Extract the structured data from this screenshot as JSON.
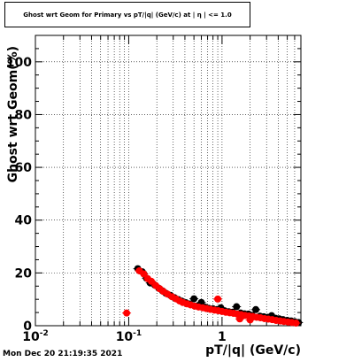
{
  "title": "Ghost wrt Geom for Primary vs pT/|q| (GeV/c) at | η | <= 1.0",
  "footer": "Mon Dec 20 21:19:35 2021",
  "chart_data": {
    "type": "scatter",
    "title": "Ghost wrt Geom for Primary vs pT/|q| (GeV/c) at | η | <= 1.0",
    "xlabel": "pT/|q| (GeV/c)",
    "ylabel": "Ghost wrt Geom(%)",
    "xscale": "log",
    "xlim": [
      0.01,
      7
    ],
    "ylim": [
      0,
      110
    ],
    "grid": true,
    "x_ticks": [
      {
        "value": 0.01,
        "label": "10",
        "exp": "-2"
      },
      {
        "value": 0.1,
        "label": "10",
        "exp": "-1"
      },
      {
        "value": 1,
        "label": "1",
        "exp": ""
      }
    ],
    "y_ticks": [
      {
        "value": 0,
        "label": "0"
      },
      {
        "value": 20,
        "label": "20"
      },
      {
        "value": 40,
        "label": "40"
      },
      {
        "value": 60,
        "label": "60"
      },
      {
        "value": 80,
        "label": "80"
      },
      {
        "value": 100,
        "label": "100"
      }
    ],
    "series": [
      {
        "color": "#000000",
        "points": [
          [
            0.125,
            21.6
          ],
          [
            0.14,
            20.4
          ],
          [
            0.155,
            18.0
          ],
          [
            0.17,
            16.2
          ],
          [
            0.19,
            15.4
          ],
          [
            0.21,
            14.2
          ],
          [
            0.23,
            13.2
          ],
          [
            0.25,
            12.3
          ],
          [
            0.28,
            11.5
          ],
          [
            0.31,
            10.6
          ],
          [
            0.34,
            9.9
          ],
          [
            0.37,
            9.3
          ],
          [
            0.41,
            8.7
          ],
          [
            0.45,
            8.2
          ],
          [
            0.5,
            10.2
          ],
          [
            0.55,
            7.5
          ],
          [
            0.6,
            8.8
          ],
          [
            0.66,
            7.0
          ],
          [
            0.72,
            6.6
          ],
          [
            0.8,
            6.4
          ],
          [
            0.88,
            6.1
          ],
          [
            0.97,
            6.8
          ],
          [
            1.07,
            5.6
          ],
          [
            1.18,
            5.3
          ],
          [
            1.3,
            5.1
          ],
          [
            1.43,
            7.2
          ],
          [
            1.58,
            4.8
          ],
          [
            1.74,
            4.5
          ],
          [
            1.92,
            4.4
          ],
          [
            2.1,
            3.9
          ],
          [
            2.3,
            6.1
          ],
          [
            2.55,
            3.6
          ],
          [
            2.8,
            3.4
          ],
          [
            3.1,
            3.2
          ],
          [
            3.4,
            3.8
          ],
          [
            3.75,
            2.8
          ],
          [
            4.1,
            2.6
          ],
          [
            4.5,
            2.3
          ],
          [
            5.0,
            2.0
          ],
          [
            5.5,
            1.8
          ],
          [
            6.0,
            1.5
          ],
          [
            6.6,
            1.2
          ]
        ]
      },
      {
        "color": "#ff0000",
        "points": [
          [
            0.095,
            4.8
          ],
          [
            0.13,
            20.8
          ],
          [
            0.145,
            19.6
          ],
          [
            0.16,
            17.8
          ],
          [
            0.175,
            16.8
          ],
          [
            0.195,
            15.2
          ],
          [
            0.215,
            14.0
          ],
          [
            0.235,
            13.0
          ],
          [
            0.26,
            12.0
          ],
          [
            0.29,
            11.0
          ],
          [
            0.32,
            10.2
          ],
          [
            0.35,
            9.4
          ],
          [
            0.38,
            8.8
          ],
          [
            0.42,
            8.3
          ],
          [
            0.46,
            7.9
          ],
          [
            0.51,
            7.4
          ],
          [
            0.56,
            7.1
          ],
          [
            0.62,
            6.8
          ],
          [
            0.68,
            6.5
          ],
          [
            0.75,
            6.2
          ],
          [
            0.83,
            5.9
          ],
          [
            0.91,
            5.7
          ],
          [
            1.0,
            5.4
          ],
          [
            1.1,
            5.1
          ],
          [
            1.21,
            4.9
          ],
          [
            1.33,
            4.7
          ],
          [
            1.46,
            4.4
          ],
          [
            1.6,
            4.2
          ],
          [
            1.76,
            3.9
          ],
          [
            1.94,
            3.7
          ],
          [
            2.13,
            3.5
          ],
          [
            2.35,
            3.2
          ],
          [
            2.58,
            3.0
          ],
          [
            2.85,
            2.7
          ],
          [
            3.13,
            2.5
          ],
          [
            3.45,
            2.3
          ],
          [
            3.8,
            2.0
          ],
          [
            4.2,
            1.8
          ],
          [
            4.6,
            1.6
          ],
          [
            5.1,
            1.4
          ],
          [
            5.6,
            1.2
          ],
          [
            6.2,
            1.0
          ],
          [
            1.55,
            2.6
          ],
          [
            0.9,
            10.1
          ],
          [
            2.0,
            2.2
          ]
        ]
      }
    ]
  }
}
